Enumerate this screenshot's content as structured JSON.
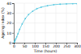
{
  "chart_data": {
    "type": "line",
    "xlabel": "Time (hours)",
    "ylabel": "Ageing index (%)",
    "x": [
      1,
      2,
      3,
      5,
      7,
      10,
      14,
      20,
      28,
      40,
      55,
      70,
      90,
      110,
      130,
      160,
      190,
      220,
      250,
      280,
      300
    ],
    "values": [
      0.3,
      0.6,
      1.0,
      1.8,
      2.8,
      4.2,
      6.0,
      9.0,
      13.5,
      19.0,
      24.5,
      28.5,
      32.0,
      34.5,
      36.0,
      37.5,
      38.5,
      39.0,
      39.3,
      39.5,
      39.6
    ],
    "color": "#56c8e0",
    "marker": "point",
    "xlim": [
      0,
      300
    ],
    "ylim": [
      0,
      40
    ],
    "xticks": [
      0,
      50,
      100,
      150,
      200,
      250,
      300
    ],
    "yticks": [
      0,
      10,
      20,
      30,
      40
    ],
    "grid": true
  }
}
